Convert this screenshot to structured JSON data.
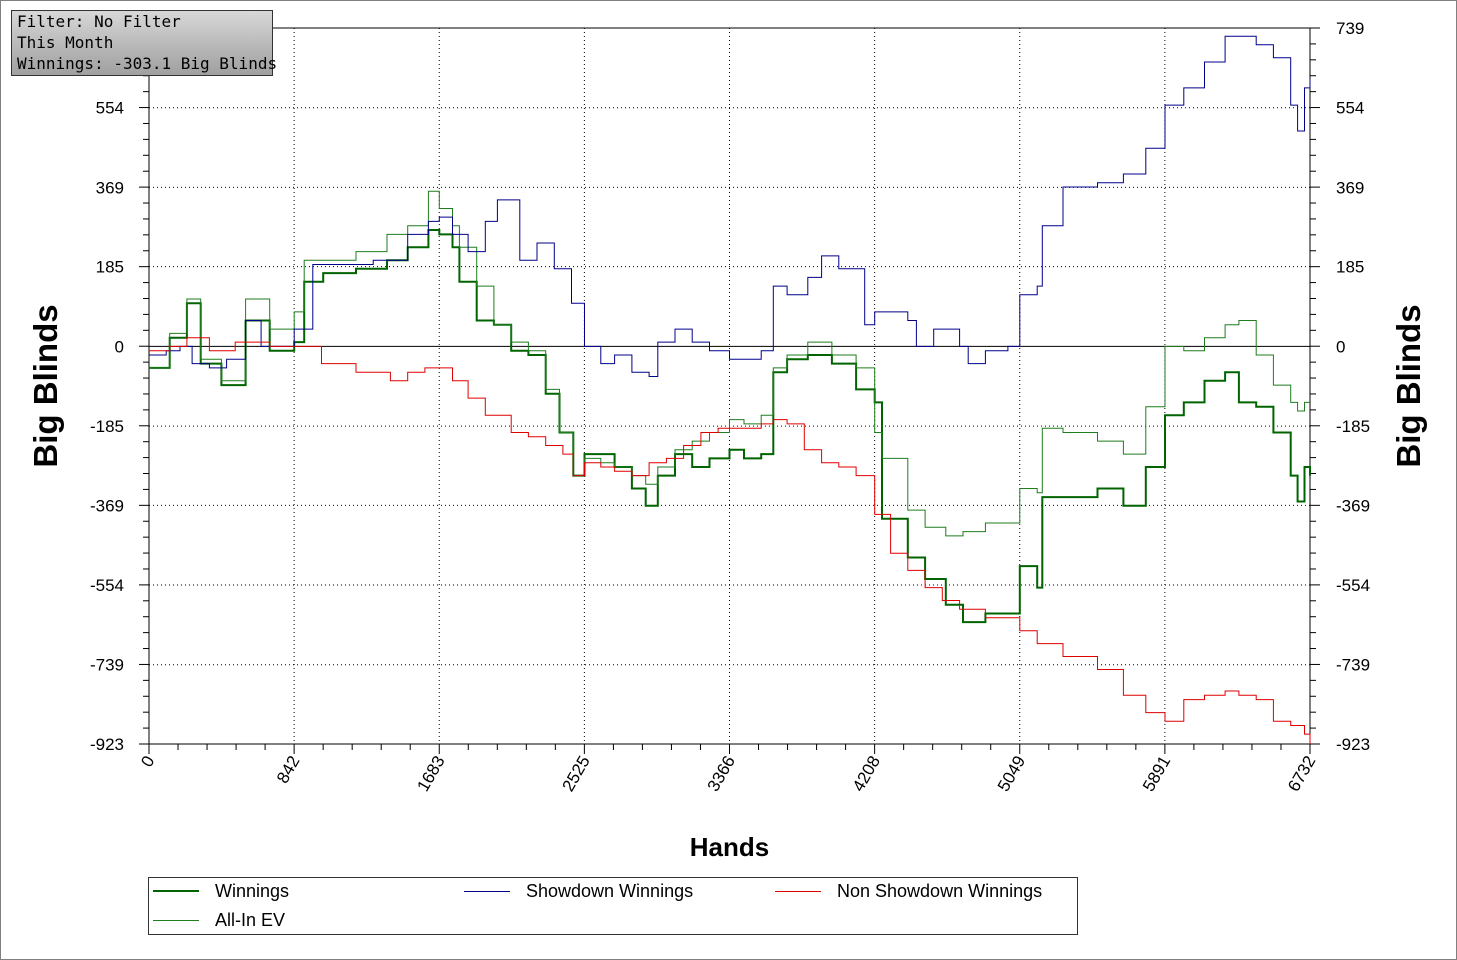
{
  "info_box": {
    "filter": "Filter: No Filter",
    "period": "This Month",
    "winnings": "Winnings: -303.1 Big Blinds"
  },
  "colors": {
    "winnings": "#006400",
    "all_in_ev": "#1e7d1e",
    "showdown": "#00008b",
    "non_showdown": "#e00000"
  },
  "chart_data": {
    "type": "line",
    "xlabel": "Hands",
    "ylabel": "Big Blinds",
    "xlim": [
      0,
      6732
    ],
    "ylim": [
      -923,
      739
    ],
    "x_ticks": [
      "0",
      "842",
      "1683",
      "2525",
      "3366",
      "4208",
      "5049",
      "5891",
      "6732"
    ],
    "y_ticks": [
      "739",
      "554",
      "369",
      "185",
      "0",
      "-185",
      "-369",
      "-554",
      "-739",
      "-923"
    ],
    "grid": true,
    "legend_position": "bottom",
    "series": [
      {
        "name": "Winnings",
        "color": "#006400",
        "width": 2,
        "points": [
          [
            0,
            -50
          ],
          [
            120,
            20
          ],
          [
            220,
            100
          ],
          [
            300,
            -40
          ],
          [
            420,
            -90
          ],
          [
            560,
            60
          ],
          [
            700,
            -10
          ],
          [
            842,
            10
          ],
          [
            900,
            150
          ],
          [
            1010,
            170
          ],
          [
            1200,
            180
          ],
          [
            1380,
            200
          ],
          [
            1500,
            230
          ],
          [
            1620,
            270
          ],
          [
            1683,
            260
          ],
          [
            1760,
            230
          ],
          [
            1800,
            150
          ],
          [
            1900,
            60
          ],
          [
            2000,
            50
          ],
          [
            2100,
            -10
          ],
          [
            2200,
            -20
          ],
          [
            2300,
            -110
          ],
          [
            2380,
            -200
          ],
          [
            2460,
            -300
          ],
          [
            2525,
            -250
          ],
          [
            2620,
            -250
          ],
          [
            2700,
            -280
          ],
          [
            2800,
            -330
          ],
          [
            2880,
            -370
          ],
          [
            2950,
            -300
          ],
          [
            3050,
            -250
          ],
          [
            3150,
            -280
          ],
          [
            3250,
            -260
          ],
          [
            3366,
            -240
          ],
          [
            3450,
            -260
          ],
          [
            3550,
            -250
          ],
          [
            3620,
            -60
          ],
          [
            3700,
            -30
          ],
          [
            3820,
            -20
          ],
          [
            3960,
            -40
          ],
          [
            4100,
            -100
          ],
          [
            4208,
            -130
          ],
          [
            4250,
            -400
          ],
          [
            4400,
            -490
          ],
          [
            4500,
            -540
          ],
          [
            4620,
            -600
          ],
          [
            4720,
            -640
          ],
          [
            4850,
            -620
          ],
          [
            4980,
            -620
          ],
          [
            5049,
            -510
          ],
          [
            5150,
            -560
          ],
          [
            5180,
            -350
          ],
          [
            5300,
            -350
          ],
          [
            5500,
            -330
          ],
          [
            5650,
            -370
          ],
          [
            5780,
            -280
          ],
          [
            5891,
            -160
          ],
          [
            6000,
            -130
          ],
          [
            6120,
            -80
          ],
          [
            6240,
            -60
          ],
          [
            6320,
            -130
          ],
          [
            6420,
            -140
          ],
          [
            6520,
            -200
          ],
          [
            6620,
            -300
          ],
          [
            6660,
            -360
          ],
          [
            6700,
            -280
          ],
          [
            6732,
            -300
          ]
        ]
      },
      {
        "name": "All-In EV",
        "color": "#1e7d1e",
        "width": 1,
        "points": [
          [
            0,
            -50
          ],
          [
            120,
            30
          ],
          [
            220,
            110
          ],
          [
            300,
            -30
          ],
          [
            420,
            -80
          ],
          [
            560,
            110
          ],
          [
            700,
            40
          ],
          [
            842,
            80
          ],
          [
            900,
            200
          ],
          [
            1010,
            200
          ],
          [
            1200,
            220
          ],
          [
            1380,
            260
          ],
          [
            1500,
            280
          ],
          [
            1620,
            360
          ],
          [
            1683,
            320
          ],
          [
            1760,
            280
          ],
          [
            1800,
            230
          ],
          [
            1900,
            140
          ],
          [
            2000,
            50
          ],
          [
            2100,
            10
          ],
          [
            2200,
            -10
          ],
          [
            2300,
            -100
          ],
          [
            2380,
            -200
          ],
          [
            2460,
            -300
          ],
          [
            2525,
            -260
          ],
          [
            2620,
            -270
          ],
          [
            2700,
            -280
          ],
          [
            2800,
            -300
          ],
          [
            2880,
            -320
          ],
          [
            2950,
            -280
          ],
          [
            3050,
            -240
          ],
          [
            3150,
            -220
          ],
          [
            3250,
            -200
          ],
          [
            3366,
            -170
          ],
          [
            3450,
            -180
          ],
          [
            3550,
            -160
          ],
          [
            3620,
            -50
          ],
          [
            3700,
            -20
          ],
          [
            3820,
            10
          ],
          [
            3960,
            -20
          ],
          [
            4100,
            -50
          ],
          [
            4208,
            -200
          ],
          [
            4250,
            -260
          ],
          [
            4400,
            -380
          ],
          [
            4500,
            -420
          ],
          [
            4620,
            -440
          ],
          [
            4720,
            -430
          ],
          [
            4850,
            -410
          ],
          [
            4980,
            -410
          ],
          [
            5049,
            -330
          ],
          [
            5150,
            -340
          ],
          [
            5180,
            -190
          ],
          [
            5300,
            -200
          ],
          [
            5500,
            -220
          ],
          [
            5650,
            -250
          ],
          [
            5780,
            -140
          ],
          [
            5891,
            0
          ],
          [
            6000,
            -10
          ],
          [
            6120,
            20
          ],
          [
            6240,
            50
          ],
          [
            6320,
            60
          ],
          [
            6420,
            -20
          ],
          [
            6520,
            -90
          ],
          [
            6620,
            -130
          ],
          [
            6660,
            -150
          ],
          [
            6700,
            -130
          ],
          [
            6732,
            -130
          ]
        ]
      },
      {
        "name": "Showdown Winnings",
        "color": "#00008b",
        "width": 1,
        "points": [
          [
            0,
            -20
          ],
          [
            100,
            -10
          ],
          [
            180,
            0
          ],
          [
            250,
            -40
          ],
          [
            350,
            -50
          ],
          [
            450,
            -30
          ],
          [
            560,
            60
          ],
          [
            650,
            0
          ],
          [
            842,
            40
          ],
          [
            950,
            190
          ],
          [
            1100,
            190
          ],
          [
            1300,
            200
          ],
          [
            1500,
            260
          ],
          [
            1620,
            290
          ],
          [
            1683,
            300
          ],
          [
            1760,
            260
          ],
          [
            1850,
            220
          ],
          [
            1950,
            290
          ],
          [
            2020,
            340
          ],
          [
            2150,
            200
          ],
          [
            2250,
            240
          ],
          [
            2350,
            180
          ],
          [
            2450,
            100
          ],
          [
            2525,
            0
          ],
          [
            2620,
            -40
          ],
          [
            2700,
            -20
          ],
          [
            2800,
            -60
          ],
          [
            2900,
            -70
          ],
          [
            2950,
            10
          ],
          [
            3050,
            40
          ],
          [
            3150,
            10
          ],
          [
            3250,
            -10
          ],
          [
            3366,
            -30
          ],
          [
            3450,
            -30
          ],
          [
            3550,
            -10
          ],
          [
            3620,
            140
          ],
          [
            3700,
            120
          ],
          [
            3820,
            160
          ],
          [
            3900,
            210
          ],
          [
            4000,
            180
          ],
          [
            4100,
            180
          ],
          [
            4150,
            50
          ],
          [
            4208,
            80
          ],
          [
            4300,
            80
          ],
          [
            4400,
            60
          ],
          [
            4450,
            0
          ],
          [
            4550,
            40
          ],
          [
            4700,
            0
          ],
          [
            4750,
            -40
          ],
          [
            4850,
            -10
          ],
          [
            4980,
            0
          ],
          [
            5049,
            120
          ],
          [
            5150,
            140
          ],
          [
            5180,
            280
          ],
          [
            5300,
            370
          ],
          [
            5500,
            380
          ],
          [
            5650,
            400
          ],
          [
            5780,
            460
          ],
          [
            5891,
            560
          ],
          [
            6000,
            600
          ],
          [
            6120,
            660
          ],
          [
            6240,
            720
          ],
          [
            6320,
            720
          ],
          [
            6420,
            700
          ],
          [
            6520,
            670
          ],
          [
            6620,
            560
          ],
          [
            6660,
            500
          ],
          [
            6700,
            600
          ],
          [
            6732,
            620
          ]
        ]
      },
      {
        "name": "Non Showdown Winnings",
        "color": "#e00000",
        "width": 1,
        "points": [
          [
            0,
            -10
          ],
          [
            120,
            0
          ],
          [
            220,
            20
          ],
          [
            350,
            -10
          ],
          [
            500,
            10
          ],
          [
            700,
            0
          ],
          [
            842,
            0
          ],
          [
            1000,
            -40
          ],
          [
            1200,
            -60
          ],
          [
            1400,
            -80
          ],
          [
            1500,
            -60
          ],
          [
            1600,
            -50
          ],
          [
            1683,
            -50
          ],
          [
            1760,
            -80
          ],
          [
            1850,
            -120
          ],
          [
            1950,
            -160
          ],
          [
            2100,
            -200
          ],
          [
            2200,
            -210
          ],
          [
            2300,
            -230
          ],
          [
            2400,
            -250
          ],
          [
            2460,
            -300
          ],
          [
            2525,
            -270
          ],
          [
            2620,
            -280
          ],
          [
            2700,
            -290
          ],
          [
            2800,
            -300
          ],
          [
            2900,
            -270
          ],
          [
            3000,
            -260
          ],
          [
            3100,
            -230
          ],
          [
            3200,
            -200
          ],
          [
            3300,
            -190
          ],
          [
            3366,
            -190
          ],
          [
            3450,
            -190
          ],
          [
            3550,
            -180
          ],
          [
            3620,
            -170
          ],
          [
            3700,
            -180
          ],
          [
            3800,
            -240
          ],
          [
            3900,
            -270
          ],
          [
            4000,
            -280
          ],
          [
            4100,
            -300
          ],
          [
            4208,
            -390
          ],
          [
            4300,
            -480
          ],
          [
            4400,
            -520
          ],
          [
            4500,
            -560
          ],
          [
            4600,
            -590
          ],
          [
            4700,
            -610
          ],
          [
            4850,
            -630
          ],
          [
            4980,
            -630
          ],
          [
            5049,
            -660
          ],
          [
            5150,
            -690
          ],
          [
            5300,
            -720
          ],
          [
            5500,
            -750
          ],
          [
            5650,
            -810
          ],
          [
            5780,
            -850
          ],
          [
            5891,
            -870
          ],
          [
            6000,
            -820
          ],
          [
            6120,
            -810
          ],
          [
            6240,
            -800
          ],
          [
            6320,
            -810
          ],
          [
            6420,
            -820
          ],
          [
            6520,
            -870
          ],
          [
            6620,
            -880
          ],
          [
            6700,
            -900
          ],
          [
            6732,
            -923
          ]
        ]
      }
    ]
  }
}
